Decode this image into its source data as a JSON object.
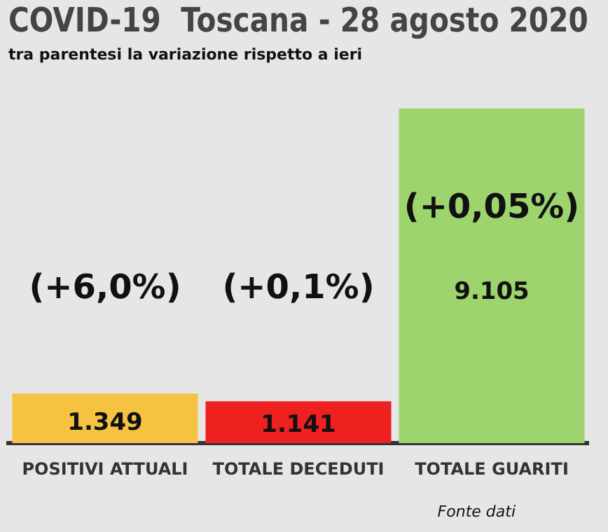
{
  "chart_data": {
    "type": "bar",
    "title": "COVID-19  Toscana - 28 agosto 2020",
    "subtitle": "tra parentesi la variazione rispetto a ieri",
    "categories": [
      "POSITIVI ATTUALI",
      "TOTALE DECEDUTI",
      "TOTALE GUARITI"
    ],
    "values": [
      1349,
      1141,
      9105
    ],
    "colors": [
      "#f5c242",
      "#ee2020",
      "#9ed46e"
    ],
    "value_labels": [
      "1.349",
      "1.141",
      "9.105"
    ],
    "annotations": [
      "(+6,0%)",
      "(+0,1%)",
      "(+0,05%)",
      "Fonte dati"
    ],
    "grid": false,
    "legend": false
  }
}
